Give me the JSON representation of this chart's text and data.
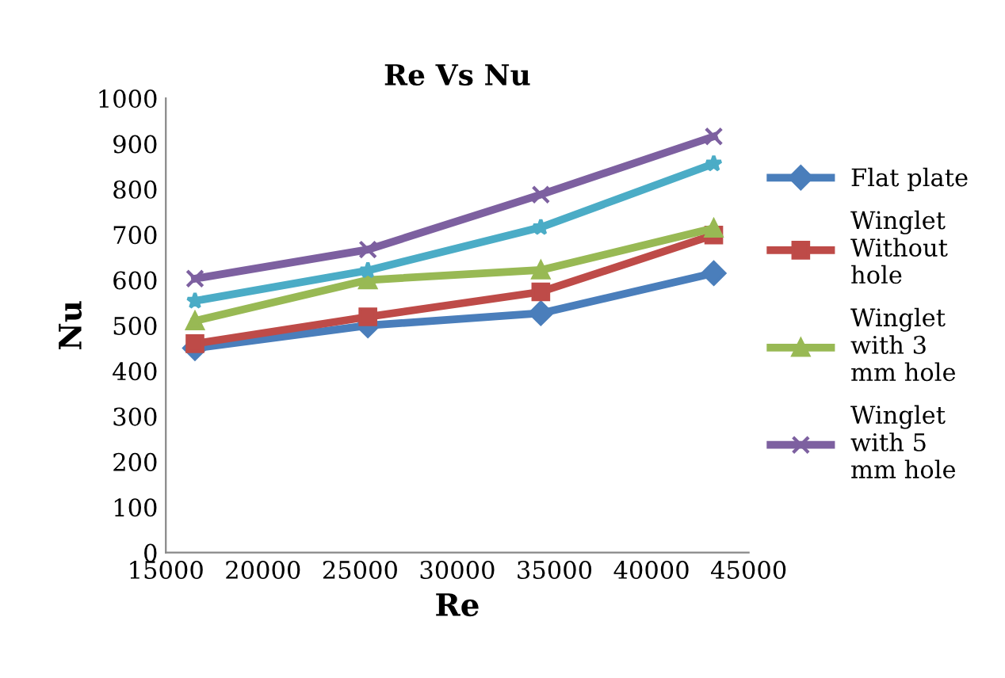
{
  "chart_data": {
    "type": "line",
    "title": "Re Vs Nu",
    "xlabel": "Re",
    "ylabel": "Nu",
    "x": [
      16500,
      25400,
      34300,
      43200
    ],
    "xlim": [
      15000,
      45000
    ],
    "xticks": [
      15000,
      20000,
      25000,
      30000,
      35000,
      40000,
      45000
    ],
    "ylim": [
      0,
      1000
    ],
    "yticks": [
      0,
      100,
      200,
      300,
      400,
      500,
      600,
      700,
      800,
      900,
      1000
    ],
    "grid": false,
    "legend": "right",
    "line_style": "solid",
    "series": [
      {
        "name": "Flat plate",
        "color": "#4a7ebb",
        "marker": "diamond",
        "values": [
          450,
          500,
          527,
          615
        ]
      },
      {
        "name": "Winglet\nWithout\nhole",
        "color": "#be4b48",
        "marker": "square",
        "values": [
          460,
          519,
          574,
          699
        ]
      },
      {
        "name": "Winglet\nwith 3\nmm hole",
        "color": "#98b954",
        "marker": "triangle",
        "values": [
          510,
          600,
          622,
          714
        ]
      },
      {
        "name": "Winglet\nwith 5\nmm hole",
        "color": "#7d60a0",
        "marker": "cross",
        "values": [
          603,
          667,
          788,
          916
        ]
      },
      {
        "color": "#4bacc6",
        "marker": "star",
        "values": [
          554,
          621,
          716,
          856
        ]
      }
    ]
  }
}
